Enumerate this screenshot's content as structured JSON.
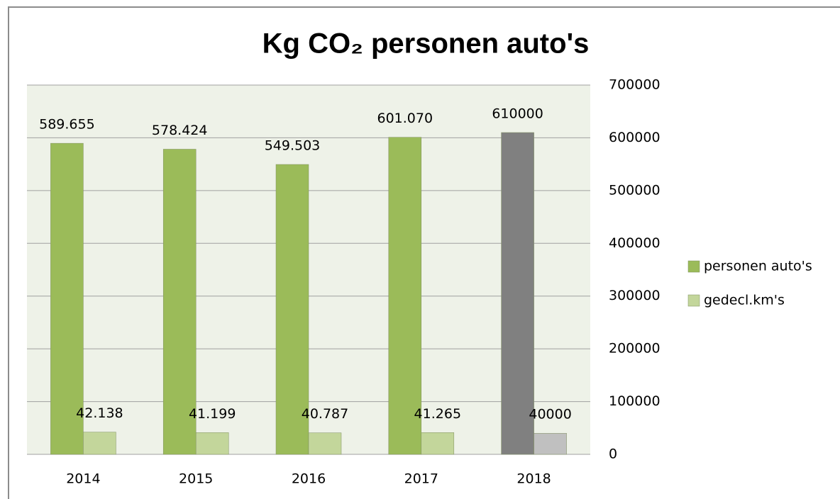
{
  "chart_data": {
    "type": "bar",
    "title": "Kg CO₂ personen auto's",
    "categories": [
      "2014",
      "2015",
      "2016",
      "2017",
      "2018"
    ],
    "series": [
      {
        "name": "personen auto's",
        "color": "#9bbb59",
        "colors": [
          "#9bbb59",
          "#9bbb59",
          "#9bbb59",
          "#9bbb59",
          "#808080"
        ],
        "values": [
          589655,
          578424,
          549503,
          601070,
          610000
        ],
        "value_labels": [
          "589.655",
          "578.424",
          "549.503",
          "601.070",
          "610000"
        ]
      },
      {
        "name": "gedecl.km's",
        "color": "#c3d69b",
        "colors": [
          "#c3d69b",
          "#c3d69b",
          "#c3d69b",
          "#c3d69b",
          "#c0c0c0"
        ],
        "values": [
          42138,
          41199,
          40787,
          41265,
          40000
        ],
        "value_labels": [
          "42.138",
          "41.199",
          "40.787",
          "41.265",
          "40000"
        ]
      }
    ],
    "ylim": [
      0,
      700000
    ],
    "yticks": [
      0,
      100000,
      200000,
      300000,
      400000,
      500000,
      600000,
      700000
    ],
    "grid": true,
    "y_axis_side": "right",
    "legend": "right"
  }
}
